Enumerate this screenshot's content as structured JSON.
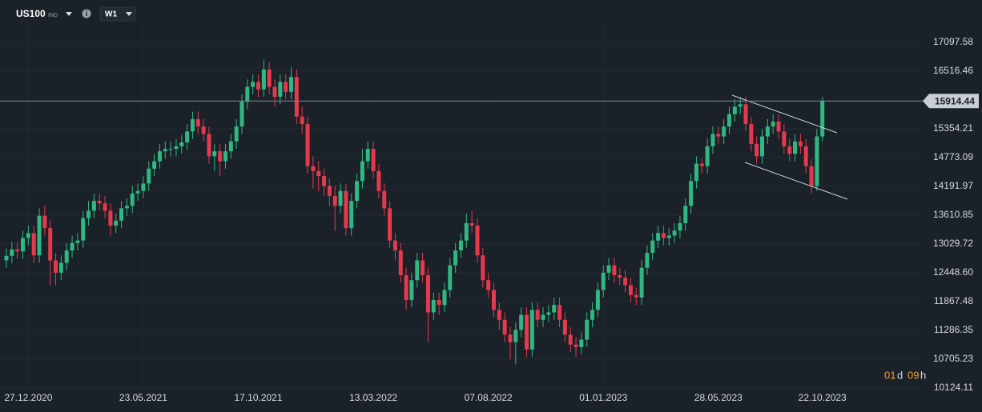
{
  "header": {
    "symbol": "US100",
    "market": "IND",
    "timeframe": "W1"
  },
  "chart_data": {
    "type": "candlestick",
    "categories": [
      null,
      null,
      null,
      null,
      "27.12.2020",
      null,
      null,
      null,
      null,
      null,
      null,
      null,
      null,
      null,
      null,
      null,
      null,
      null,
      null,
      null,
      null,
      null,
      null,
      null,
      null,
      "23.05.2021",
      null,
      null,
      null,
      null,
      null,
      null,
      null,
      null,
      null,
      null,
      null,
      null,
      null,
      null,
      null,
      null,
      null,
      null,
      null,
      null,
      "17.10.2021",
      null,
      null,
      null,
      null,
      null,
      null,
      null,
      null,
      null,
      null,
      null,
      null,
      null,
      null,
      null,
      null,
      null,
      null,
      null,
      null,
      "13.03.2022",
      null,
      null,
      null,
      null,
      null,
      null,
      null,
      null,
      null,
      null,
      null,
      null,
      null,
      null,
      null,
      null,
      null,
      null,
      null,
      null,
      "07.08.2022",
      null,
      null,
      null,
      null,
      null,
      null,
      null,
      null,
      null,
      null,
      null,
      null,
      null,
      null,
      null,
      null,
      null,
      null,
      null,
      null,
      "01.01.2023",
      null,
      null,
      null,
      null,
      null,
      null,
      null,
      null,
      null,
      null,
      null,
      null,
      null,
      null,
      null,
      null,
      null,
      null,
      null,
      null,
      "28.05.2023",
      null,
      null,
      null,
      null,
      null,
      null,
      null,
      null,
      null,
      null,
      null,
      null,
      null,
      null,
      null,
      null,
      null,
      null,
      "22.10.2023"
    ],
    "open": [
      12700,
      12790,
      12920,
      12880,
      13150,
      13250,
      12800,
      13600,
      13350,
      12700,
      12450,
      12650,
      12900,
      13050,
      13100,
      13550,
      13700,
      13900,
      13850,
      13700,
      13400,
      13500,
      13750,
      13800,
      14050,
      14100,
      14250,
      14550,
      14700,
      14900,
      14950,
      14950,
      15000,
      15080,
      15300,
      15550,
      15400,
      15250,
      14800,
      14900,
      14700,
      14900,
      15100,
      15400,
      15900,
      16200,
      16300,
      16150,
      16550,
      16200,
      16000,
      16300,
      16100,
      16400,
      15600,
      15450,
      14600,
      14500,
      14400,
      14200,
      14000,
      13800,
      14100,
      13350,
      13900,
      14300,
      14700,
      14950,
      14500,
      14100,
      13750,
      13100,
      12900,
      12400,
      11900,
      12300,
      12700,
      12400,
      11650,
      11900,
      11800,
      12100,
      12600,
      12900,
      13100,
      13450,
      13400,
      12800,
      12300,
      12100,
      11700,
      11500,
      11200,
      11050,
      11300,
      11600,
      10900,
      11700,
      11500,
      11600,
      11650,
      11800,
      11500,
      11200,
      11000,
      10950,
      11100,
      11500,
      11700,
      12100,
      12450,
      12600,
      12400,
      12350,
      12200,
      12000,
      11950,
      12550,
      12850,
      13100,
      13250,
      13150,
      13200,
      13300,
      13450,
      13800,
      14300,
      14650,
      14600,
      15000,
      15250,
      15200,
      15400,
      15650,
      15800,
      15850,
      15450,
      15050,
      14800,
      15200,
      15400,
      15500,
      15300,
      15000,
      14850,
      15100,
      15000,
      14600,
      14200,
      15200
    ],
    "high": [
      12940,
      13070,
      13070,
      13300,
      13400,
      13400,
      13750,
      13800,
      13500,
      12850,
      12800,
      13050,
      13200,
      13250,
      13700,
      13900,
      14050,
      14050,
      14000,
      13850,
      13650,
      13900,
      13950,
      14200,
      14250,
      14400,
      14700,
      14850,
      15050,
      15100,
      15100,
      15150,
      15230,
      15450,
      15700,
      15700,
      15550,
      15400,
      15050,
      15050,
      15050,
      15250,
      15550,
      16050,
      16350,
      16450,
      16450,
      16750,
      16700,
      16350,
      16450,
      16450,
      16600,
      16550,
      15800,
      15600,
      14800,
      14700,
      14550,
      14350,
      14200,
      14250,
      14250,
      14050,
      14450,
      14950,
      15100,
      15100,
      14650,
      14250,
      13900,
      13250,
      13050,
      12550,
      12450,
      12850,
      12850,
      12550,
      12050,
      12050,
      12250,
      12750,
      13050,
      13250,
      13650,
      13700,
      13550,
      12950,
      12450,
      12250,
      11850,
      11650,
      11350,
      11450,
      11750,
      11750,
      11850,
      11850,
      11750,
      11800,
      11950,
      11950,
      11650,
      11350,
      11150,
      11250,
      11650,
      11850,
      12250,
      12600,
      12750,
      12750,
      12550,
      12500,
      12350,
      12150,
      12700,
      13000,
      13250,
      13400,
      13400,
      13350,
      13450,
      13600,
      13950,
      14450,
      14800,
      14750,
      15150,
      15400,
      15400,
      15550,
      15800,
      15950,
      16000,
      16000,
      15600,
      15200,
      15350,
      15550,
      15650,
      15650,
      15450,
      15150,
      15250,
      15250,
      15150,
      14750,
      15350,
      16000
    ],
    "low": [
      12550,
      12640,
      12730,
      12730,
      13000,
      12650,
      12650,
      13200,
      12200,
      12200,
      12300,
      12500,
      12750,
      12900,
      12950,
      13400,
      13550,
      13700,
      13550,
      13200,
      13250,
      13350,
      13600,
      13650,
      13900,
      13950,
      14100,
      14400,
      14550,
      14750,
      14800,
      14800,
      14850,
      14930,
      15150,
      15250,
      15100,
      14650,
      14500,
      14400,
      14550,
      14750,
      14950,
      15250,
      15750,
      16050,
      16000,
      16000,
      16050,
      15800,
      15850,
      15950,
      15950,
      15450,
      15250,
      14450,
      14150,
      14100,
      14000,
      13800,
      13300,
      13650,
      13200,
      13200,
      13750,
      14150,
      14550,
      14350,
      13950,
      13600,
      12950,
      12700,
      12250,
      11700,
      11750,
      12150,
      12250,
      11050,
      11500,
      11600,
      11650,
      11950,
      12450,
      12750,
      12950,
      13250,
      12650,
      12150,
      11950,
      11550,
      11300,
      11050,
      10700,
      10600,
      11150,
      10750,
      10750,
      11350,
      11350,
      11450,
      11500,
      11350,
      11050,
      10850,
      10750,
      10800,
      10950,
      11350,
      11550,
      11950,
      12300,
      12250,
      12200,
      12050,
      11850,
      11800,
      11800,
      12400,
      12700,
      12950,
      13000,
      13000,
      13050,
      13150,
      13300,
      13650,
      14150,
      14450,
      14450,
      14850,
      15050,
      15050,
      15250,
      15500,
      15650,
      15300,
      14900,
      14650,
      14650,
      15050,
      15250,
      15150,
      14850,
      14700,
      14700,
      14850,
      14450,
      14050,
      14100,
      15100
    ],
    "close": [
      12790,
      12920,
      12880,
      13150,
      13250,
      12800,
      13600,
      13350,
      12700,
      12450,
      12650,
      12900,
      13050,
      13100,
      13550,
      13700,
      13900,
      13850,
      13700,
      13400,
      13500,
      13750,
      13800,
      14050,
      14100,
      14250,
      14550,
      14700,
      14900,
      14950,
      14950,
      15000,
      15080,
      15300,
      15550,
      15400,
      15250,
      14800,
      14900,
      14700,
      14900,
      15100,
      15400,
      15900,
      16200,
      16300,
      16150,
      16550,
      16200,
      16000,
      16300,
      16100,
      16400,
      15600,
      15450,
      14600,
      14500,
      14400,
      14200,
      14000,
      13800,
      14100,
      13350,
      13900,
      14300,
      14700,
      14950,
      14500,
      14100,
      13750,
      13100,
      12900,
      12400,
      11900,
      12300,
      12700,
      12400,
      11650,
      11900,
      11800,
      12100,
      12600,
      12900,
      13100,
      13450,
      13400,
      12800,
      12300,
      12100,
      11700,
      11500,
      11200,
      11050,
      11300,
      11600,
      10900,
      11700,
      11500,
      11600,
      11650,
      11800,
      11500,
      11200,
      11000,
      10950,
      11100,
      11500,
      11700,
      12100,
      12450,
      12600,
      12400,
      12350,
      12200,
      12000,
      11950,
      12550,
      12850,
      13100,
      13250,
      13150,
      13200,
      13300,
      13450,
      13800,
      14300,
      14650,
      14600,
      15000,
      15250,
      15200,
      15400,
      15650,
      15800,
      15850,
      15450,
      15050,
      14800,
      15200,
      15400,
      15500,
      15300,
      15000,
      14850,
      15100,
      15000,
      14600,
      14200,
      15200,
      15914.44
    ],
    "up_color": "#2fb884",
    "down_color": "#e5394d",
    "ylim": [
      9801,
      17469
    ],
    "yticks": [
      17097.58,
      16516.46,
      15354.21,
      14773.09,
      14191.97,
      13610.85,
      13029.72,
      {
        "value": 12448.6,
        "label": "12448.60"
      },
      11867.48,
      11286.35,
      10705.23,
      10124.11
    ],
    "grid": true,
    "last_price": 15914.44,
    "countdown": {
      "days": "01",
      "day_unit": "d",
      "hours": "09",
      "hour_unit": "h"
    }
  }
}
